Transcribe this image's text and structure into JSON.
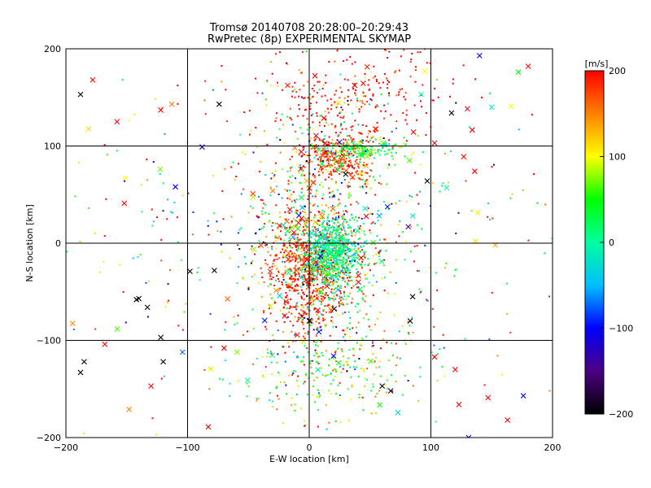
{
  "chart_data": {
    "type": "scatter",
    "title": "Tromsø 20140708 20:28:00–20:29:43",
    "subtitle": "RwPretec (8p) EXPERIMENTAL SKYMAP",
    "xlabel": "E-W location [km]",
    "ylabel": "N-S location [km]",
    "xlim": [
      -200,
      200
    ],
    "ylim": [
      -200,
      200
    ],
    "xticks": [
      -200,
      -100,
      0,
      100,
      200
    ],
    "yticks": [
      -200,
      -100,
      0,
      100,
      200
    ],
    "xtick_labels": [
      "−200",
      "−100",
      "0",
      "100",
      "200"
    ],
    "ytick_labels": [
      "−200",
      "−100",
      "0",
      "100",
      "200"
    ],
    "grid": true,
    "colorbar": {
      "label": "[m/s]",
      "range": [
        -200,
        200
      ],
      "ticks": [
        200,
        100,
        0,
        -100,
        -200
      ],
      "tick_labels": [
        "200",
        "100",
        "0",
        "−100",
        "−200"
      ],
      "colors": [
        "#000000",
        "#4b0082",
        "#0000ff",
        "#00bfff",
        "#00ffa0",
        "#00ff00",
        "#ffff00",
        "#ff8000",
        "#ff0000"
      ]
    },
    "markers": {
      "small_points": "dot",
      "large_points": "x"
    },
    "clusters": [
      {
        "cx": 0,
        "cy": -25,
        "sx": 18,
        "sy": 30,
        "n": 700,
        "vmean": 190,
        "vsd": 30
      },
      {
        "cx": 20,
        "cy": -10,
        "sx": 12,
        "sy": 18,
        "n": 650,
        "vmean": 5,
        "vsd": 30
      },
      {
        "cx": 25,
        "cy": 85,
        "sx": 14,
        "sy": 12,
        "n": 280,
        "vmean": 180,
        "vsd": 25
      },
      {
        "cx": 45,
        "cy": 97,
        "sx": 18,
        "sy": 5,
        "n": 170,
        "vmean": 30,
        "vsd": 40
      },
      {
        "cx": 10,
        "cy": 20,
        "sx": 30,
        "sy": 70,
        "n": 700,
        "vmean": 60,
        "vsd": 120
      },
      {
        "cx": 30,
        "cy": 150,
        "sx": 45,
        "sy": 30,
        "n": 260,
        "vmean": 200,
        "vsd": 30
      },
      {
        "cx": 20,
        "cy": -130,
        "sx": 40,
        "sy": 25,
        "n": 260,
        "vmean": 80,
        "vsd": 80
      },
      {
        "cx": 0,
        "cy": 0,
        "sx": 110,
        "sy": 100,
        "n": 400,
        "vmean": 80,
        "vsd": 140
      }
    ],
    "x_markers": [
      {
        "x": -188,
        "y": 153,
        "v": -200
      },
      {
        "x": -178,
        "y": 168,
        "v": 200
      },
      {
        "x": -158,
        "y": 125,
        "v": 200
      },
      {
        "x": -122,
        "y": 137,
        "v": 200
      },
      {
        "x": -113,
        "y": 143,
        "v": 150
      },
      {
        "x": -74,
        "y": 143,
        "v": -200
      },
      {
        "x": -88,
        "y": 99,
        "v": -100
      },
      {
        "x": -110,
        "y": 58,
        "v": -100
      },
      {
        "x": -152,
        "y": 41,
        "v": 200
      },
      {
        "x": -98,
        "y": -29,
        "v": -200
      },
      {
        "x": -78,
        "y": -28,
        "v": -200
      },
      {
        "x": -140,
        "y": -57,
        "v": -200
      },
      {
        "x": -133,
        "y": -66,
        "v": -200
      },
      {
        "x": -142,
        "y": -58,
        "v": -200
      },
      {
        "x": -122,
        "y": -97,
        "v": -200
      },
      {
        "x": -120,
        "y": -122,
        "v": -200
      },
      {
        "x": -185,
        "y": -122,
        "v": -200
      },
      {
        "x": -188,
        "y": -133,
        "v": -200
      },
      {
        "x": -168,
        "y": -104,
        "v": 200
      },
      {
        "x": -148,
        "y": -171,
        "v": 150
      },
      {
        "x": -130,
        "y": -147,
        "v": 200
      },
      {
        "x": -83,
        "y": -189,
        "v": 200
      },
      {
        "x": -70,
        "y": -108,
        "v": 200
      },
      {
        "x": 97,
        "y": 64,
        "v": -200
      },
      {
        "x": 113,
        "y": 57,
        "v": 0
      },
      {
        "x": 103,
        "y": 103,
        "v": 200
      },
      {
        "x": 117,
        "y": 134,
        "v": -200
      },
      {
        "x": 127,
        "y": 89,
        "v": 200
      },
      {
        "x": 136,
        "y": 74,
        "v": 200
      },
      {
        "x": 150,
        "y": 140,
        "v": 0
      },
      {
        "x": 166,
        "y": 141,
        "v": 100
      },
      {
        "x": 180,
        "y": 182,
        "v": 200
      },
      {
        "x": 172,
        "y": 176,
        "v": 50
      },
      {
        "x": 140,
        "y": 193,
        "v": -100
      },
      {
        "x": 95,
        "y": 177,
        "v": 100
      },
      {
        "x": 92,
        "y": 153,
        "v": 0
      },
      {
        "x": 60,
        "y": -147,
        "v": -200
      },
      {
        "x": 67,
        "y": -152,
        "v": -200
      },
      {
        "x": 83,
        "y": -80,
        "v": -200
      },
      {
        "x": 85,
        "y": -55,
        "v": -200
      },
      {
        "x": 103,
        "y": -117,
        "v": 200
      },
      {
        "x": 120,
        "y": -130,
        "v": 200
      },
      {
        "x": 131,
        "y": -200,
        "v": -100
      },
      {
        "x": 176,
        "y": -157,
        "v": -100
      },
      {
        "x": 163,
        "y": -182,
        "v": 200
      },
      {
        "x": 147,
        "y": -159,
        "v": 200
      },
      {
        "x": 123,
        "y": -166,
        "v": 200
      },
      {
        "x": 20,
        "y": -116,
        "v": -100
      },
      {
        "x": 30,
        "y": 71,
        "v": -200
      },
      {
        "x": -30,
        "y": 54,
        "v": 150
      },
      {
        "x": 0,
        "y": -80,
        "v": -200
      }
    ]
  }
}
